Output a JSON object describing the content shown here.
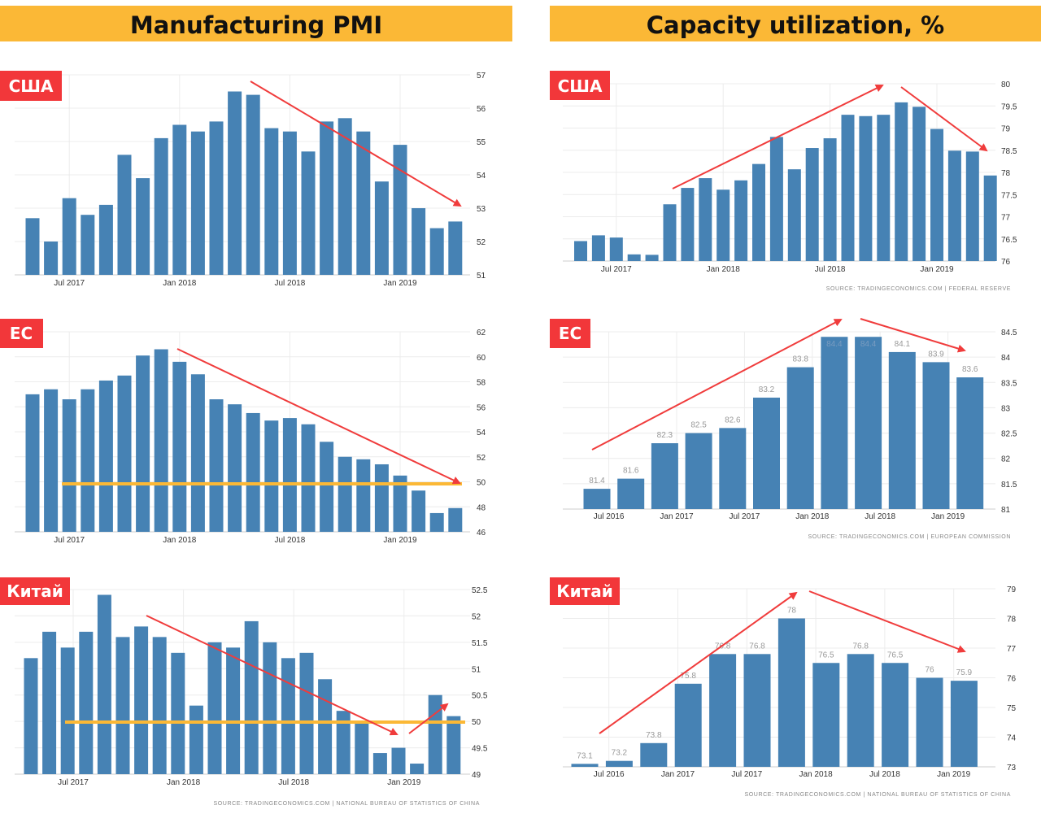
{
  "headers": {
    "left": "Manufacturing PMI",
    "right": "Capacity utilization, %"
  },
  "colors": {
    "header_bg": "#FBB836",
    "badge_bg": "#F2373A",
    "bar": "#4682B4",
    "arrow": "#F03C3C",
    "threshold": "#FBB836",
    "grid": "#ECECEC"
  },
  "chart_data": [
    {
      "type": "bar",
      "title": "Manufacturing PMI",
      "badge": "США",
      "values": [
        52.7,
        52.0,
        53.3,
        52.8,
        53.1,
        54.6,
        53.9,
        55.1,
        55.5,
        55.3,
        55.6,
        56.5,
        56.4,
        55.4,
        55.3,
        54.7,
        55.6,
        55.7,
        55.3,
        53.8,
        54.9,
        53.0,
        52.4,
        52.6
      ],
      "ylim": [
        51,
        57
      ],
      "ystep": 1,
      "yticks": [
        "51",
        "52",
        "53",
        "54",
        "55",
        "56",
        "57"
      ],
      "xticks": [
        {
          "label": "Jul 2017",
          "index": 2
        },
        {
          "label": "Jan 2018",
          "index": 8
        },
        {
          "label": "Jul 2018",
          "index": 14
        },
        {
          "label": "Jan 2019",
          "index": 20
        }
      ],
      "grid": true,
      "trend": "down",
      "source": ""
    },
    {
      "type": "bar",
      "title": "Manufacturing PMI",
      "badge": "ЕС",
      "values": [
        57.0,
        57.4,
        56.6,
        57.4,
        58.1,
        58.5,
        60.1,
        60.6,
        59.6,
        58.6,
        56.6,
        56.2,
        55.5,
        54.9,
        55.1,
        54.6,
        53.2,
        52.0,
        51.8,
        51.4,
        50.5,
        49.3,
        47.5,
        47.9
      ],
      "ylim": [
        46,
        62
      ],
      "ystep": 2,
      "yticks": [
        "46",
        "48",
        "50",
        "52",
        "54",
        "56",
        "58",
        "60",
        "62"
      ],
      "xticks": [
        {
          "label": "Jul 2017",
          "index": 2
        },
        {
          "label": "Jan 2018",
          "index": 8
        },
        {
          "label": "Jul 2018",
          "index": 14
        },
        {
          "label": "Jan 2019",
          "index": 20
        }
      ],
      "threshold": 50,
      "grid": true,
      "trend": "down",
      "source": ""
    },
    {
      "type": "bar",
      "title": "Manufacturing PMI",
      "badge": "Китай",
      "values": [
        51.2,
        51.7,
        51.4,
        51.7,
        52.4,
        51.6,
        51.8,
        51.6,
        51.3,
        50.3,
        51.5,
        51.4,
        51.9,
        51.5,
        51.2,
        51.3,
        50.8,
        50.2,
        50.0,
        49.4,
        49.5,
        49.2,
        50.5,
        50.1
      ],
      "ylim": [
        49,
        52.5
      ],
      "ystep": 0.5,
      "yticks": [
        "49",
        "49.5",
        "50",
        "50.5",
        "51",
        "51.5",
        "52",
        "52.5"
      ],
      "xticks": [
        {
          "label": "Jul 2017",
          "index": 2.3
        },
        {
          "label": "Jan 2018",
          "index": 8.3
        },
        {
          "label": "Jul 2018",
          "index": 14.3
        },
        {
          "label": "Jan 2019",
          "index": 20.3
        }
      ],
      "threshold": 50,
      "grid": true,
      "trend": "down then up",
      "source": "SOURCE: TRADINGECONOMICS.COM | NATIONAL BUREAU OF STATISTICS OF CHINA"
    },
    {
      "type": "bar",
      "title": "Capacity utilization, %",
      "badge": "США",
      "values": [
        76.45,
        76.58,
        76.53,
        76.15,
        76.14,
        77.28,
        77.65,
        77.87,
        77.61,
        77.82,
        78.19,
        78.8,
        78.07,
        78.55,
        78.77,
        79.3,
        79.27,
        79.3,
        79.58,
        79.48,
        78.98,
        78.49,
        78.47,
        77.93
      ],
      "ylim": [
        76,
        80
      ],
      "ystep": 0.5,
      "yticks": [
        "76",
        "76.5",
        "77",
        "77.5",
        "78",
        "78.5",
        "79",
        "79.5",
        "80"
      ],
      "xticks": [
        {
          "label": "Jul 2017",
          "index": 2
        },
        {
          "label": "Jan 2018",
          "index": 8
        },
        {
          "label": "Jul 2018",
          "index": 14
        },
        {
          "label": "Jan 2019",
          "index": 20
        }
      ],
      "grid": true,
      "trend": "up then down",
      "source": "SOURCE: TRADINGECONOMICS.COM | FEDERAL RESERVE"
    },
    {
      "type": "bar",
      "title": "Capacity utilization, %",
      "badge": "ЕС",
      "values": [
        81.4,
        81.6,
        82.3,
        82.5,
        82.6,
        83.2,
        83.8,
        84.4,
        84.4,
        84.1,
        83.9,
        83.6
      ],
      "labels": [
        "81.4",
        "81.6",
        "82.3",
        "82.5",
        "82.6",
        "83.2",
        "83.8",
        "84.4",
        "84.4",
        "84.1",
        "83.9",
        "83.6"
      ],
      "ylim": [
        81,
        84.5
      ],
      "ystep": 0.5,
      "yticks": [
        "81",
        "81.5",
        "82",
        "82.5",
        "83",
        "83.5",
        "84",
        "84.5"
      ],
      "xticks": [
        {
          "label": "Jul 2016",
          "index": 0.35
        },
        {
          "label": "Jan 2017",
          "index": 2.35
        },
        {
          "label": "Jul 2017",
          "index": 4.35
        },
        {
          "label": "Jan 2018",
          "index": 6.35
        },
        {
          "label": "Jul 2018",
          "index": 8.35
        },
        {
          "label": "Jan 2019",
          "index": 10.35
        }
      ],
      "grid": true,
      "trend": "up then down",
      "source": "SOURCE: TRADINGECONOMICS.COM | EUROPEAN COMMISSION"
    },
    {
      "type": "bar",
      "title": "Capacity utilization, %",
      "badge": "Китай",
      "values": [
        73.1,
        73.2,
        73.8,
        75.8,
        76.8,
        76.8,
        78,
        76.5,
        76.8,
        76.5,
        76,
        75.9
      ],
      "labels": [
        "73.1",
        "73.2",
        "73.8",
        "75.8",
        "76.8",
        "76.8",
        "78",
        "76.5",
        "76.8",
        "76.5",
        "76",
        "75.9"
      ],
      "ylim": [
        73,
        79
      ],
      "ystep": 1,
      "yticks": [
        "73",
        "74",
        "75",
        "76",
        "77",
        "78",
        "79"
      ],
      "xticks": [
        {
          "label": "Jul 2016",
          "index": 0.7
        },
        {
          "label": "Jan 2017",
          "index": 2.7
        },
        {
          "label": "Jul 2017",
          "index": 4.7
        },
        {
          "label": "Jan 2018",
          "index": 6.7
        },
        {
          "label": "Jul 2018",
          "index": 8.7
        },
        {
          "label": "Jan 2019",
          "index": 10.7
        }
      ],
      "grid": true,
      "trend": "up then down",
      "source": "SOURCE: TRADINGECONOMICS.COM | NATIONAL BUREAU OF STATISTICS OF CHINA"
    }
  ]
}
